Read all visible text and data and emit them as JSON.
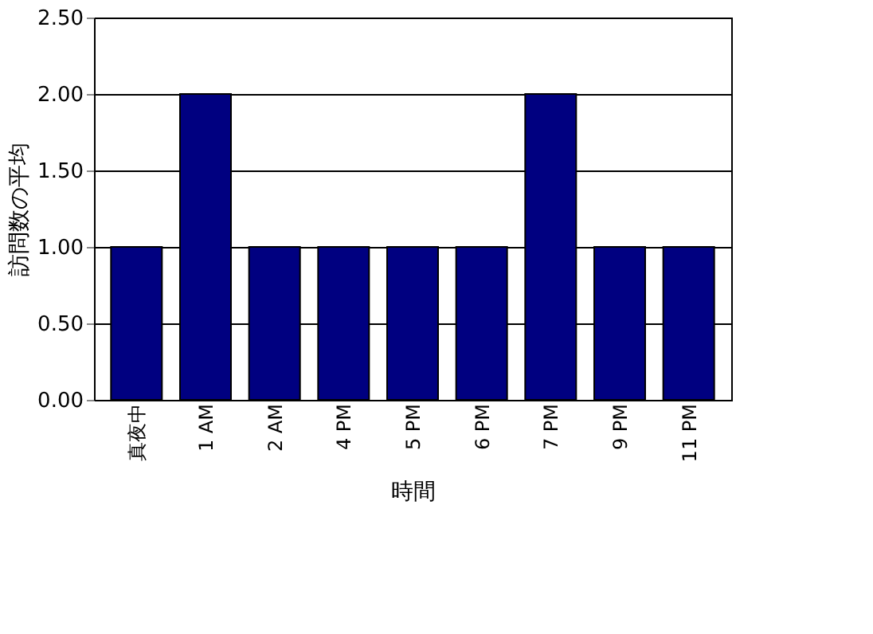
{
  "chart_data": {
    "type": "bar",
    "xlabel": "時間",
    "ylabel": "訪問数の平均",
    "categories": [
      "真夜中",
      "1 AM",
      "2 AM",
      "4 PM",
      "5 PM",
      "6 PM",
      "7 PM",
      "9 PM",
      "11 PM"
    ],
    "values": [
      1,
      2,
      1,
      1,
      1,
      1,
      2,
      1,
      1
    ],
    "color": "#000080",
    "ylim": [
      0,
      2.5
    ],
    "yticks": [
      {
        "value": 0,
        "label": "0.00"
      },
      {
        "value": 0.5,
        "label": "0.50"
      },
      {
        "value": 1,
        "label": "1.00"
      },
      {
        "value": 1.5,
        "label": "1.50"
      },
      {
        "value": 2,
        "label": "2.00"
      },
      {
        "value": 2.5,
        "label": "2.50"
      }
    ],
    "grid": "y"
  }
}
